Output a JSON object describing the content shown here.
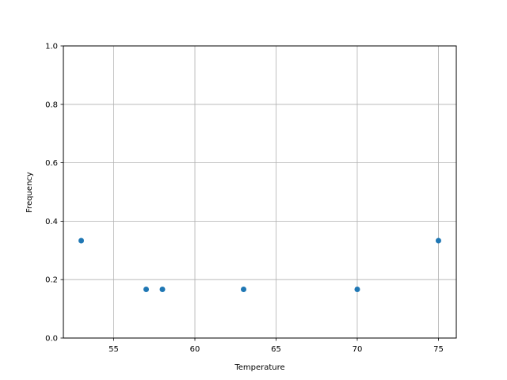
{
  "chart_data": {
    "type": "scatter",
    "title": "",
    "xlabel": "Temperature",
    "ylabel": "Frequency",
    "xlim": [
      51.9,
      76.1
    ],
    "ylim": [
      0,
      1.0
    ],
    "xticks": [
      "55",
      "60",
      "65",
      "70",
      "75"
    ],
    "xtick_values": [
      55,
      60,
      65,
      70,
      75
    ],
    "yticks": [
      "0.0",
      "0.2",
      "0.4",
      "0.6",
      "0.8",
      "1.0"
    ],
    "ytick_values": [
      0,
      0.2,
      0.4,
      0.6,
      0.8,
      1.0
    ],
    "grid": true,
    "marker_color": "#1f77b4",
    "points": [
      {
        "x": 53,
        "y": 0.3333
      },
      {
        "x": 57,
        "y": 0.1667
      },
      {
        "x": 58,
        "y": 0.1667
      },
      {
        "x": 63,
        "y": 0.1667
      },
      {
        "x": 70,
        "y": 0.1667
      },
      {
        "x": 75,
        "y": 0.3333
      }
    ]
  }
}
